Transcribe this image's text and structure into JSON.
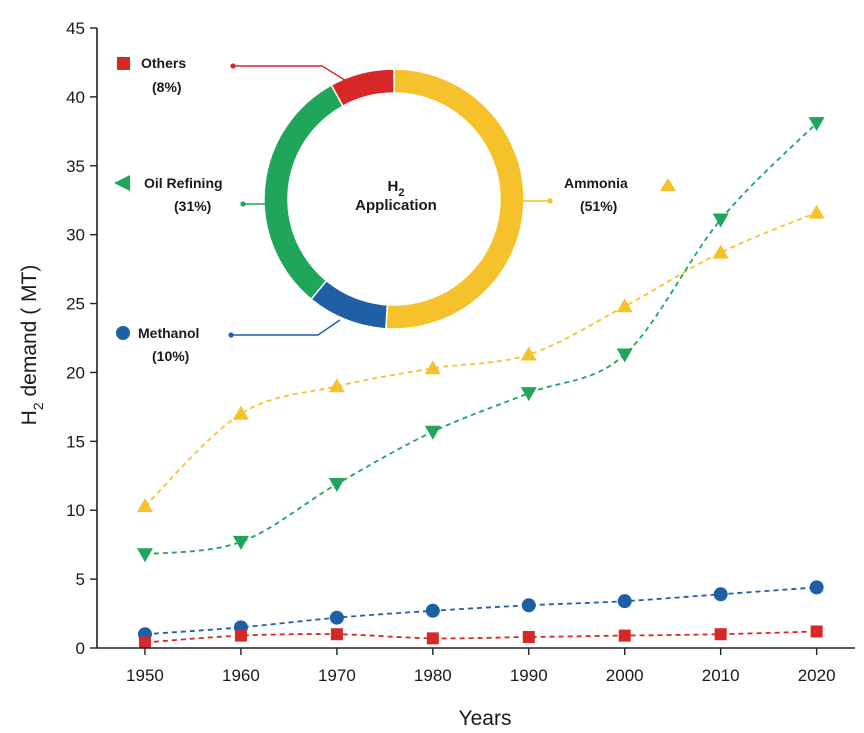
{
  "chart_data": {
    "type": "line",
    "xlabel": "Years",
    "ylabel_main": "H",
    "ylabel_sub": "2",
    "ylabel_rest": " demand ( MT)",
    "x": [
      1950,
      1960,
      1970,
      1980,
      1990,
      2000,
      2010,
      2020
    ],
    "xlim": [
      1945,
      2024
    ],
    "ylim": [
      0,
      45
    ],
    "yticks": [
      0,
      5,
      10,
      15,
      20,
      25,
      30,
      35,
      40,
      45
    ],
    "grid": false,
    "series": [
      {
        "key": "ammonia",
        "color": "#f5c22b",
        "marker": "triangle-up",
        "values": [
          10.3,
          17.0,
          19.0,
          20.3,
          21.3,
          24.8,
          28.7,
          31.6
        ]
      },
      {
        "key": "oil",
        "color": "#1fa65a",
        "marker": "triangle-down",
        "values": [
          6.8,
          7.7,
          11.9,
          15.7,
          18.5,
          21.3,
          31.1,
          38.1
        ]
      },
      {
        "key": "methanol",
        "color": "#1f5fa6",
        "marker": "circle",
        "values": [
          1.0,
          1.5,
          2.2,
          2.7,
          3.1,
          3.4,
          3.9,
          4.4
        ]
      },
      {
        "key": "others",
        "color": "#d62828",
        "marker": "square",
        "values": [
          0.4,
          0.9,
          1.0,
          0.7,
          0.8,
          0.9,
          1.0,
          1.2
        ]
      }
    ]
  },
  "inset": {
    "type": "pie",
    "title_main": "H",
    "title_sub": "2",
    "title_line2": "Application",
    "slices": [
      {
        "name": "Ammonia",
        "pct_label": "(51%)",
        "value": 51,
        "color": "#f5c22b"
      },
      {
        "name": "Methanol",
        "pct_label": "(10%)",
        "value": 10,
        "color": "#1f5fa6"
      },
      {
        "name": "Oil Refining",
        "pct_label": "(31%)",
        "value": 31,
        "color": "#1fa65a"
      },
      {
        "name": "Others",
        "pct_label": "(8%)",
        "value": 8,
        "color": "#d62828"
      }
    ]
  }
}
